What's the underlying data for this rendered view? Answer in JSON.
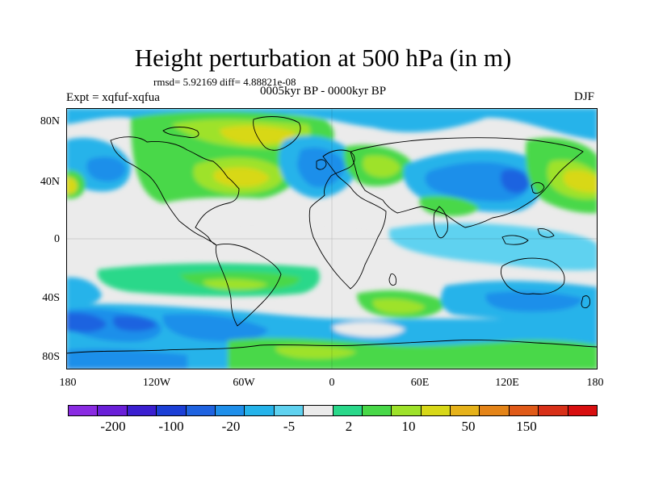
{
  "title": "Height perturbation at 500 hPa (in m)",
  "stats": "rmsd= 5.92169 diff= 4.88821e-08",
  "experiment": "Expt = xqfuf-xqfua",
  "period": "0005kyr BP - 0000kyr BP",
  "season": "DJF",
  "y_ticks": [
    "80N",
    "40N",
    "0",
    "40S",
    "80S"
  ],
  "x_ticks": [
    "180",
    "120W",
    "60W",
    "0",
    "60E",
    "120E",
    "180"
  ],
  "colorbar": {
    "colors": [
      "#8a2be2",
      "#6a1fd8",
      "#3b1fd0",
      "#1c3fd6",
      "#1f63e0",
      "#1f8fea",
      "#25b3ea",
      "#5fd2f0",
      "#ebebeb",
      "#2ad88a",
      "#48d848",
      "#9ee22a",
      "#d8d818",
      "#e6b21a",
      "#e48418",
      "#e05a18",
      "#d83018",
      "#d80f10"
    ],
    "labels": [
      "-200",
      "-100",
      "-20",
      "-5",
      "2",
      "10",
      "50",
      "150"
    ]
  }
}
